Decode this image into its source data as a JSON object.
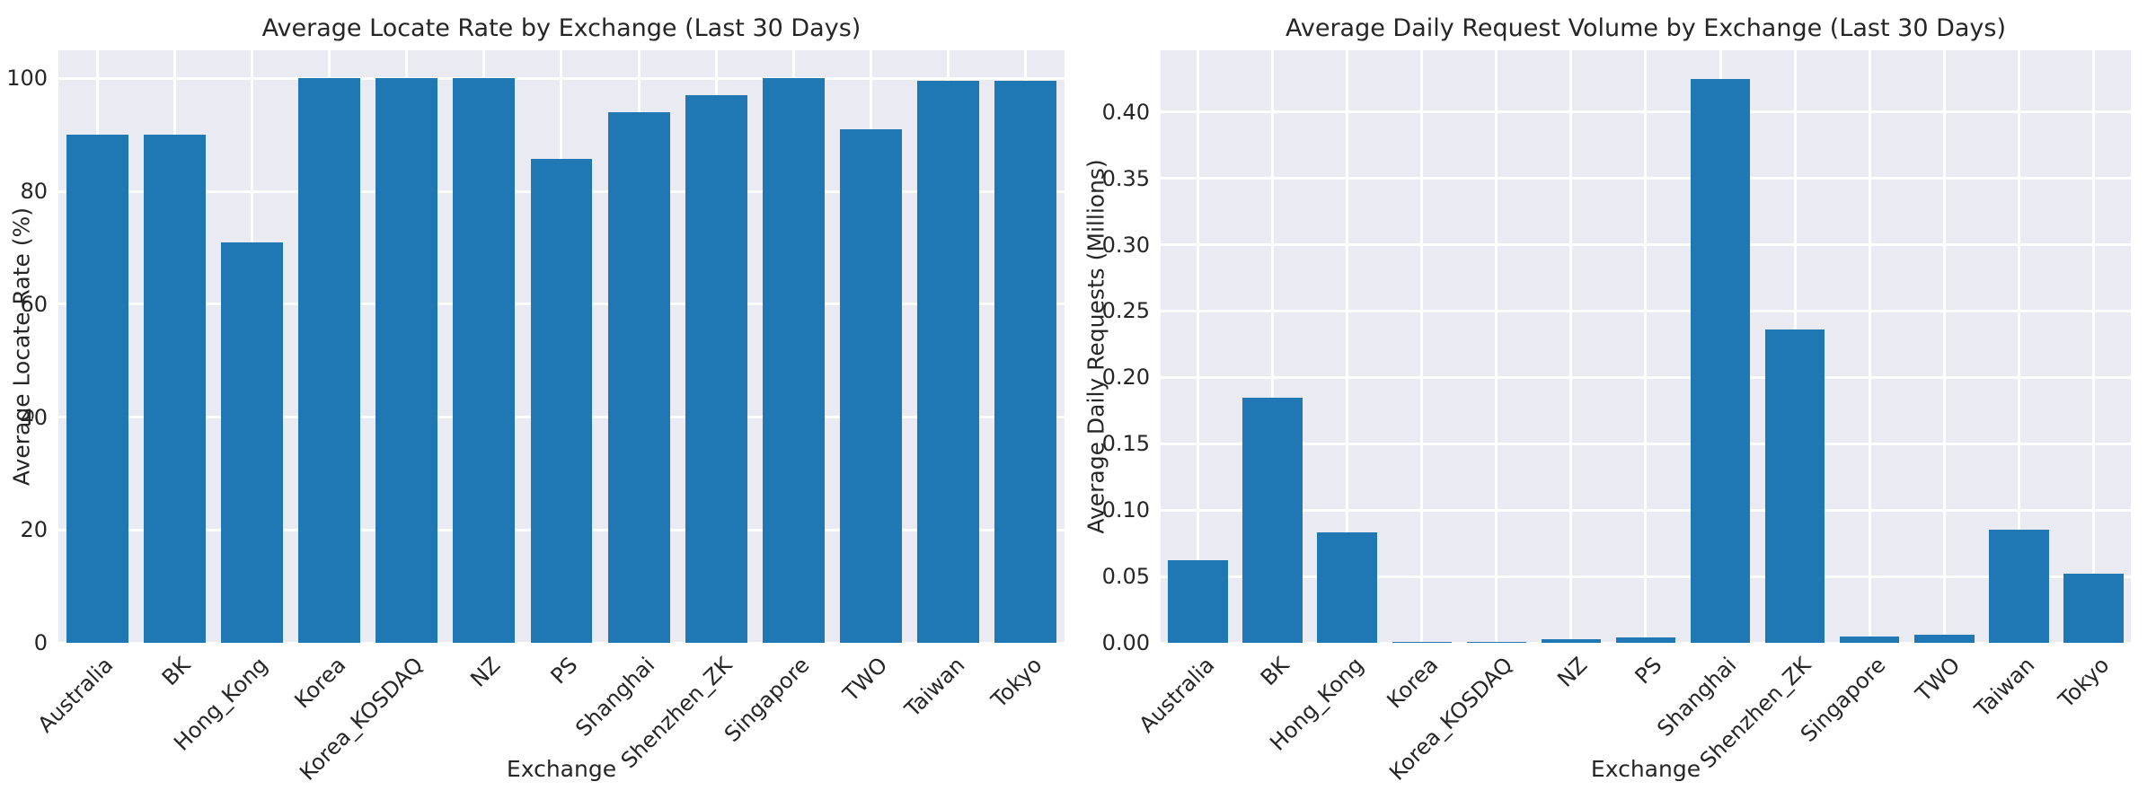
{
  "style": {
    "bar_color": "#1f77b4",
    "plot_background": "#eaeaf2",
    "grid_color": "#ffffff",
    "text_color": "#262626"
  },
  "chart_data": [
    {
      "type": "bar",
      "title": "Average Locate Rate by Exchange (Last 30 Days)",
      "xlabel": "Exchange",
      "ylabel": "Average Locate Rate (%)",
      "categories": [
        "Australia",
        "BK",
        "Hong_Kong",
        "Korea",
        "Korea_KOSDAQ",
        "NZ",
        "PS",
        "Shanghai",
        "Shenzhen_ZK",
        "Singapore",
        "TWO",
        "Taiwan",
        "Tokyo"
      ],
      "values": [
        90,
        90,
        71,
        100,
        100,
        100,
        85.7,
        94,
        97,
        100,
        91,
        99.6,
        99.6
      ],
      "ytick_values": [
        0,
        20,
        40,
        60,
        80,
        100
      ],
      "ytick_labels": [
        "0",
        "20",
        "40",
        "60",
        "80",
        "100"
      ],
      "ylim": [
        0,
        105
      ],
      "grid": "darkgrid, white gridlines horizontal and vertical",
      "legend": "none",
      "xtick_rotation_deg": 45
    },
    {
      "type": "bar",
      "title": "Average Daily Request Volume by Exchange (Last 30 Days)",
      "xlabel": "Exchange",
      "ylabel": "Average Daily Requests (Millions)",
      "categories": [
        "Australia",
        "BK",
        "Hong_Kong",
        "Korea",
        "Korea_KOSDAQ",
        "NZ",
        "PS",
        "Shanghai",
        "Shenzhen_ZK",
        "Singapore",
        "TWO",
        "Taiwan",
        "Tokyo"
      ],
      "values": [
        0.062,
        0.185,
        0.083,
        0.001,
        0.001,
        0.003,
        0.004,
        0.425,
        0.236,
        0.005,
        0.006,
        0.085,
        0.052
      ],
      "ytick_values": [
        0.0,
        0.05,
        0.1,
        0.15,
        0.2,
        0.25,
        0.3,
        0.35,
        0.4
      ],
      "ytick_labels": [
        "0.00",
        "0.05",
        "0.10",
        "0.15",
        "0.20",
        "0.25",
        "0.30",
        "0.35",
        "0.40"
      ],
      "ylim": [
        0,
        0.4465
      ],
      "grid": "darkgrid, white gridlines horizontal and vertical",
      "legend": "none",
      "xtick_rotation_deg": 45
    }
  ]
}
